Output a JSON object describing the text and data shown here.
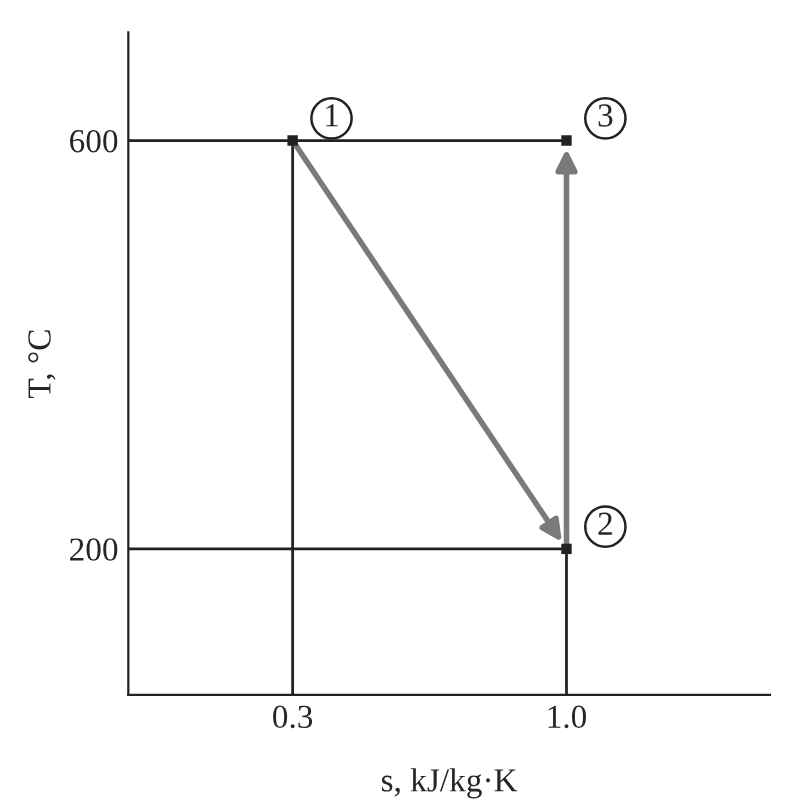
{
  "chart_data": {
    "type": "line",
    "xlabel": "s, kJ/kg·K",
    "ylabel": "T, °C",
    "xlim": [
      -0.12,
      1.52
    ],
    "ylim": [
      57,
      706
    ],
    "xticks": [
      0.3,
      {
        "value": 1.0,
        "label": "1.0"
      }
    ],
    "yticks": [
      200,
      600
    ],
    "series": [
      {
        "color": "#222222",
        "x": [
          -0.12,
          1.0
        ],
        "values": [
          600,
          600
        ]
      },
      {
        "color": "#222222",
        "x": [
          -0.12,
          1.0
        ],
        "values": [
          200,
          200
        ]
      },
      {
        "color": "#222222",
        "x": [
          0.3,
          0.3
        ],
        "values": [
          57,
          600
        ]
      },
      {
        "color": "#222222",
        "x": [
          1.0,
          1.0
        ],
        "values": [
          57,
          200
        ]
      },
      {
        "type": "scatter",
        "color": "#222222",
        "x": [
          0.3,
          1.0,
          1.0
        ],
        "values": [
          600,
          200,
          600
        ]
      }
    ],
    "annotations": [
      "1",
      "2",
      "3"
    ],
    "grid": false,
    "legend": false
  }
}
